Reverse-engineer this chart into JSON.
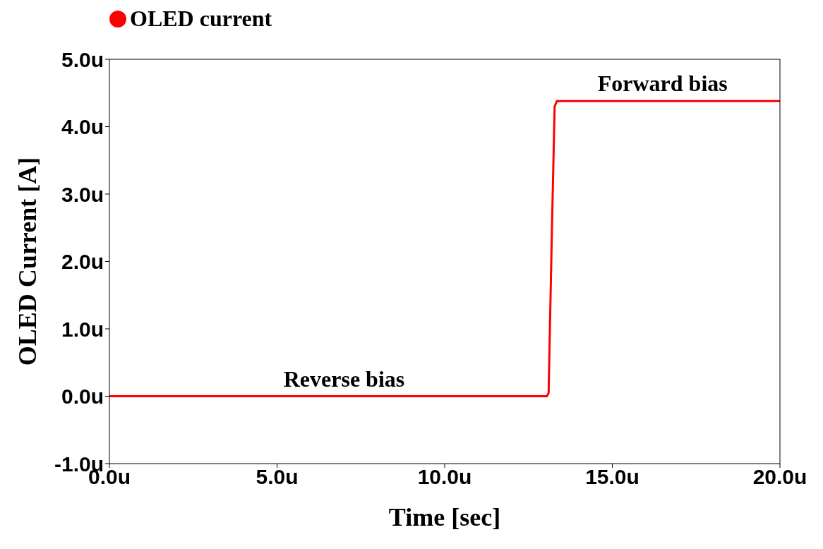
{
  "chart_data": {
    "type": "line",
    "xlabel": "Time  [sec]",
    "ylabel": "OLED Current  [A]",
    "x": [
      0,
      13.05,
      13.1,
      13.2,
      13.28,
      13.35,
      13.45,
      20
    ],
    "series": [
      {
        "name": "OLED current",
        "color": "#ff0000",
        "values": [
          0,
          0,
          0.05,
          2.5,
          4.3,
          4.38,
          4.38,
          4.38
        ]
      }
    ],
    "xlim": [
      0,
      20
    ],
    "xticks": [
      {
        "value": 0,
        "label": "0.0u"
      },
      {
        "value": 5,
        "label": "5.0u"
      },
      {
        "value": 10,
        "label": "10.0u"
      },
      {
        "value": 15,
        "label": "15.0u"
      },
      {
        "value": 20,
        "label": "20.0u"
      }
    ],
    "ylim": [
      -1,
      5
    ],
    "yticks": [
      {
        "value": -1,
        "label": "-1.0u"
      },
      {
        "value": 0,
        "label": "0.0u"
      },
      {
        "value": 1,
        "label": "1.0u"
      },
      {
        "value": 2,
        "label": "2.0u"
      },
      {
        "value": 3,
        "label": "3.0u"
      },
      {
        "value": 4,
        "label": "4.0u"
      },
      {
        "value": 5,
        "label": "5.0u"
      }
    ],
    "annotations": [
      {
        "text": "Forward bias",
        "x": 16.5,
        "y": 4.38
      },
      {
        "text": "Reverse bias",
        "x": 7,
        "y": 0
      }
    ],
    "grid": false,
    "legend": "top left",
    "marker": "none",
    "line_style": "solid"
  }
}
